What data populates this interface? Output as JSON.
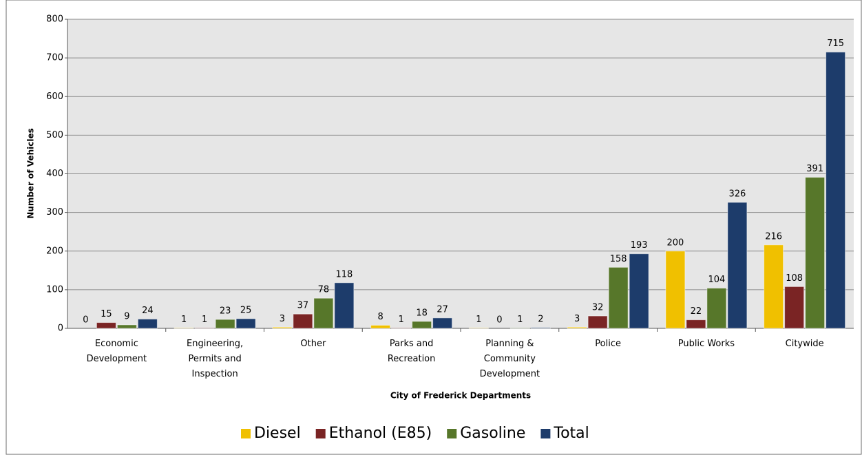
{
  "chart_data": {
    "type": "bar",
    "xlabel": "City of Frederick Departments",
    "ylabel": "Number of Vehicles",
    "categories": [
      "Economic Development",
      "Engineering, Permits and Inspection",
      "Other",
      "Parks and Recreation",
      "Planning & Community Development",
      "Police",
      "Public Works",
      "Citywide"
    ],
    "series": [
      {
        "name": "Diesel",
        "color": "#f0c000",
        "values": [
          0,
          1,
          3,
          8,
          1,
          3,
          200,
          216
        ]
      },
      {
        "name": "Ethanol (E85)",
        "color": "#7a2424",
        "values": [
          15,
          1,
          37,
          1,
          0,
          32,
          22,
          108
        ]
      },
      {
        "name": "Gasoline",
        "color": "#57772a",
        "values": [
          9,
          23,
          78,
          18,
          1,
          158,
          104,
          391
        ]
      },
      {
        "name": "Total",
        "color": "#1d3c6b",
        "values": [
          24,
          25,
          118,
          27,
          2,
          193,
          326,
          715
        ]
      }
    ],
    "ylim": [
      0,
      800
    ],
    "yticks": [
      0,
      100,
      200,
      300,
      400,
      500,
      600,
      700,
      800
    ],
    "grid": true,
    "legend": "bottom"
  }
}
